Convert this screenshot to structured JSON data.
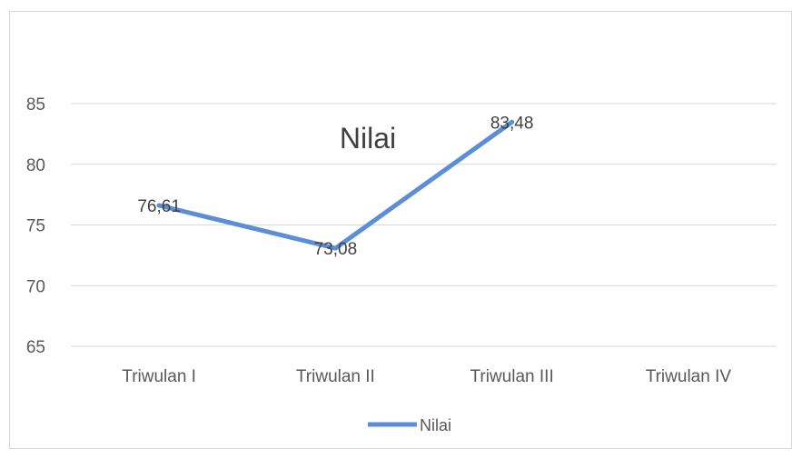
{
  "chart_data": {
    "type": "line",
    "title": "Nilai",
    "categories": [
      "Triwulan I",
      "Triwulan II",
      "Triwulan III",
      "Triwulan IV"
    ],
    "series": [
      {
        "name": "Nilai",
        "values": [
          76.61,
          73.08,
          83.48,
          null
        ],
        "data_labels": [
          "76,61",
          "73,08",
          "83,48",
          ""
        ]
      }
    ],
    "ylim": [
      65,
      85
    ],
    "yticks": [
      {
        "value": 65,
        "label": "65"
      },
      {
        "value": 70,
        "label": "70"
      },
      {
        "value": 75,
        "label": "75"
      },
      {
        "value": 80,
        "label": "80"
      },
      {
        "value": 85,
        "label": "85"
      }
    ],
    "grid": true,
    "legend_position": "bottom",
    "colors": {
      "series_line": "#5b8ed6",
      "gridline": "#d9d9d9",
      "axis_text": "#595959",
      "title_text": "#404040",
      "label_text": "#404040"
    }
  }
}
